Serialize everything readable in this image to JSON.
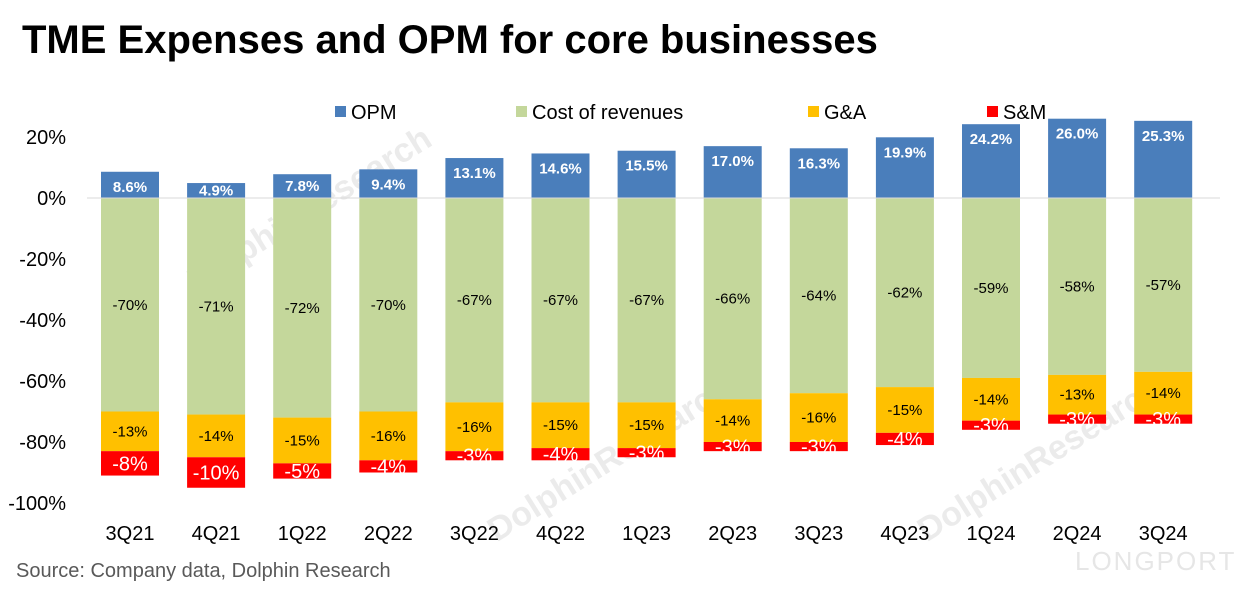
{
  "title": "TME Expenses and OPM for core businesses",
  "source": "Source: Company data, Dolphin Research",
  "watermark": {
    "text": "DolphinResearch",
    "brand": "LONGPORT"
  },
  "colors": {
    "opm": "#4A7EBB",
    "cost": "#C4D79B",
    "ga": "#FFC000",
    "sm": "#FF0000",
    "axis": "#d9d9d9"
  },
  "chart_data": {
    "type": "bar",
    "stacked": true,
    "title": "TME Expenses and OPM for core businesses",
    "categories": [
      "3Q21",
      "4Q21",
      "1Q22",
      "2Q22",
      "3Q22",
      "4Q22",
      "1Q23",
      "2Q23",
      "3Q23",
      "4Q23",
      "1Q24",
      "2Q24",
      "3Q24"
    ],
    "ylim": [
      -100,
      20
    ],
    "yticks": [
      "20%",
      "0%",
      "-20%",
      "-40%",
      "-60%",
      "-80%",
      "-100%"
    ],
    "ytick_values": [
      20,
      0,
      -20,
      -40,
      -60,
      -80,
      -100
    ],
    "legend_position": "top",
    "series": [
      {
        "name": "OPM",
        "values": [
          8.6,
          4.9,
          7.8,
          9.4,
          13.1,
          14.6,
          15.5,
          17.0,
          16.3,
          19.9,
          24.2,
          26.0,
          25.3
        ],
        "labels": [
          "8.6%",
          "4.9%",
          "7.8%",
          "9.4%",
          "13.1%",
          "14.6%",
          "15.5%",
          "17.0%",
          "16.3%",
          "19.9%",
          "24.2%",
          "26.0%",
          "25.3%"
        ]
      },
      {
        "name": "Cost of revenues",
        "values": [
          -70,
          -71,
          -72,
          -70,
          -67,
          -67,
          -67,
          -66,
          -64,
          -62,
          -59,
          -58,
          -57
        ],
        "labels": [
          "-70%",
          "-71%",
          "-72%",
          "-70%",
          "-67%",
          "-67%",
          "-67%",
          "-66%",
          "-64%",
          "-62%",
          "-59%",
          "-58%",
          "-57%"
        ]
      },
      {
        "name": "G&A",
        "values": [
          -13,
          -14,
          -15,
          -16,
          -16,
          -15,
          -15,
          -14,
          -16,
          -15,
          -14,
          -13,
          -14
        ],
        "labels": [
          "-13%",
          "-14%",
          "-15%",
          "-16%",
          "-16%",
          "-15%",
          "-15%",
          "-14%",
          "-16%",
          "-15%",
          "-14%",
          "-13%",
          "-14%"
        ]
      },
      {
        "name": "S&M",
        "values": [
          -8,
          -10,
          -5,
          -4,
          -3,
          -4,
          -3,
          -3,
          -3,
          -4,
          -3,
          -3,
          -3
        ],
        "labels": [
          "-8%",
          "-10%",
          "-5%",
          "-4%",
          "-3%",
          "-4%",
          "-3%",
          "-3%",
          "-3%",
          "-4%",
          "-3%",
          "-3%",
          "-3%"
        ]
      }
    ]
  }
}
